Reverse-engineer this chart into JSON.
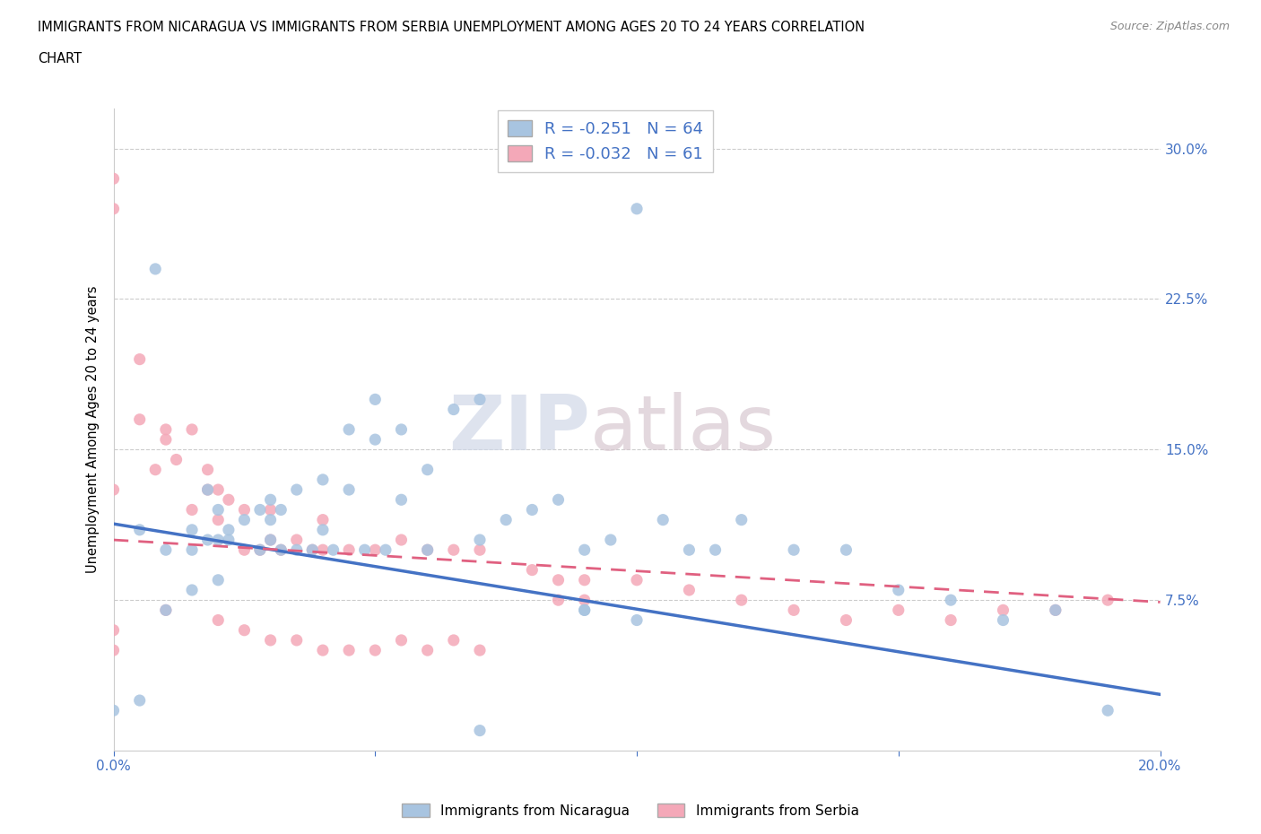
{
  "title_line1": "IMMIGRANTS FROM NICARAGUA VS IMMIGRANTS FROM SERBIA UNEMPLOYMENT AMONG AGES 20 TO 24 YEARS CORRELATION",
  "title_line2": "CHART",
  "source": "Source: ZipAtlas.com",
  "xlabel": "",
  "ylabel": "Unemployment Among Ages 20 to 24 years",
  "xlim": [
    0.0,
    0.2
  ],
  "ylim": [
    0.0,
    0.32
  ],
  "xticks": [
    0.0,
    0.05,
    0.1,
    0.15,
    0.2
  ],
  "xticklabels": [
    "0.0%",
    "",
    "",
    "",
    "20.0%"
  ],
  "yticks": [
    0.0,
    0.075,
    0.15,
    0.225,
    0.3
  ],
  "yticklabels": [
    "",
    "7.5%",
    "15.0%",
    "22.5%",
    "30.0%"
  ],
  "R_nicaragua": -0.251,
  "N_nicaragua": 64,
  "R_serbia": -0.032,
  "N_serbia": 61,
  "color_nicaragua": "#a8c4e0",
  "color_serbia": "#f4a8b8",
  "line_color_nicaragua": "#4472c4",
  "line_color_serbia": "#e06080",
  "watermark_zip": "ZIP",
  "watermark_atlas": "atlas",
  "legend_label_nicaragua": "Immigrants from Nicaragua",
  "legend_label_serbia": "Immigrants from Serbia",
  "nic_line_x0": 0.0,
  "nic_line_y0": 0.113,
  "nic_line_x1": 0.2,
  "nic_line_y1": 0.028,
  "ser_line_x0": 0.0,
  "ser_line_y0": 0.105,
  "ser_line_x1": 0.2,
  "ser_line_y1": 0.074,
  "nicaragua_scatter_x": [
    0.0,
    0.01,
    0.02,
    0.02,
    0.025,
    0.028,
    0.03,
    0.03,
    0.032,
    0.035,
    0.035,
    0.038,
    0.04,
    0.04,
    0.042,
    0.045,
    0.045,
    0.048,
    0.05,
    0.05,
    0.055,
    0.055,
    0.06,
    0.06,
    0.065,
    0.07,
    0.07,
    0.075,
    0.08,
    0.085,
    0.09,
    0.095,
    0.1,
    0.105,
    0.11,
    0.115,
    0.12,
    0.13,
    0.14,
    0.15,
    0.16,
    0.18,
    0.005,
    0.008,
    0.015,
    0.015,
    0.018,
    0.018,
    0.022,
    0.022,
    0.028,
    0.03,
    0.032,
    0.052,
    0.09,
    0.1,
    0.17,
    0.19,
    0.005,
    0.01,
    0.015,
    0.02,
    0.07,
    0.09
  ],
  "nicaragua_scatter_y": [
    0.02,
    0.1,
    0.105,
    0.12,
    0.115,
    0.1,
    0.105,
    0.125,
    0.1,
    0.1,
    0.13,
    0.1,
    0.135,
    0.11,
    0.1,
    0.13,
    0.16,
    0.1,
    0.155,
    0.175,
    0.125,
    0.16,
    0.14,
    0.1,
    0.17,
    0.105,
    0.175,
    0.115,
    0.12,
    0.125,
    0.1,
    0.105,
    0.27,
    0.115,
    0.1,
    0.1,
    0.115,
    0.1,
    0.1,
    0.08,
    0.075,
    0.07,
    0.11,
    0.24,
    0.1,
    0.11,
    0.105,
    0.13,
    0.11,
    0.105,
    0.12,
    0.115,
    0.12,
    0.1,
    0.07,
    0.065,
    0.065,
    0.02,
    0.025,
    0.07,
    0.08,
    0.085,
    0.01,
    0.07
  ],
  "serbia_scatter_x": [
    0.0,
    0.0,
    0.0,
    0.005,
    0.005,
    0.008,
    0.01,
    0.01,
    0.012,
    0.015,
    0.015,
    0.018,
    0.018,
    0.02,
    0.02,
    0.022,
    0.025,
    0.025,
    0.028,
    0.03,
    0.03,
    0.032,
    0.035,
    0.038,
    0.04,
    0.04,
    0.045,
    0.05,
    0.055,
    0.06,
    0.065,
    0.07,
    0.08,
    0.09,
    0.1,
    0.11,
    0.12,
    0.13,
    0.14,
    0.15,
    0.16,
    0.17,
    0.18,
    0.19,
    0.0,
    0.0,
    0.01,
    0.02,
    0.025,
    0.03,
    0.035,
    0.04,
    0.045,
    0.05,
    0.055,
    0.06,
    0.065,
    0.07,
    0.085,
    0.085,
    0.09
  ],
  "serbia_scatter_y": [
    0.285,
    0.27,
    0.13,
    0.195,
    0.165,
    0.14,
    0.16,
    0.155,
    0.145,
    0.12,
    0.16,
    0.13,
    0.14,
    0.115,
    0.13,
    0.125,
    0.1,
    0.12,
    0.1,
    0.105,
    0.12,
    0.1,
    0.105,
    0.1,
    0.1,
    0.115,
    0.1,
    0.1,
    0.105,
    0.1,
    0.1,
    0.1,
    0.09,
    0.085,
    0.085,
    0.08,
    0.075,
    0.07,
    0.065,
    0.07,
    0.065,
    0.07,
    0.07,
    0.075,
    0.05,
    0.06,
    0.07,
    0.065,
    0.06,
    0.055,
    0.055,
    0.05,
    0.05,
    0.05,
    0.055,
    0.05,
    0.055,
    0.05,
    0.085,
    0.075,
    0.075
  ]
}
